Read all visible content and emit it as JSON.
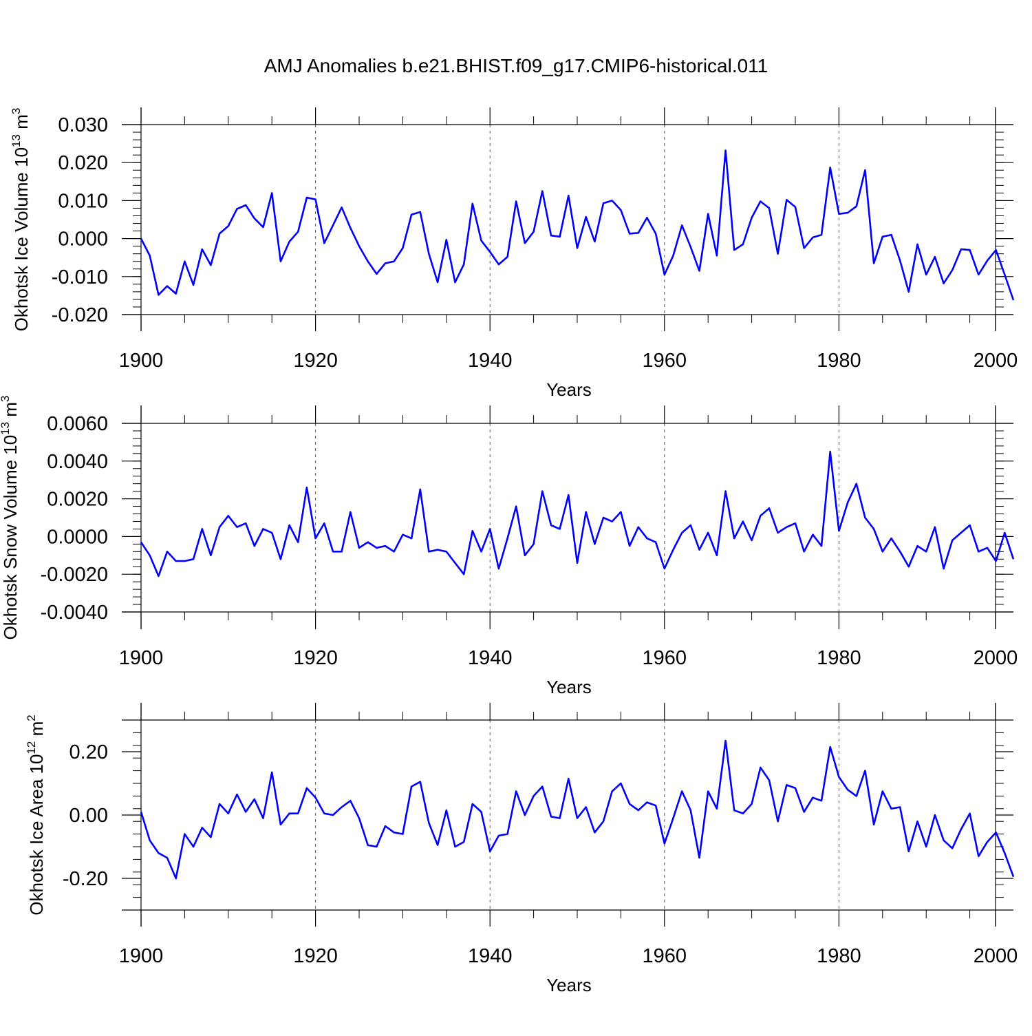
{
  "title": "AMJ Anomalies b.e21.BHIST.f09_g17.CMIP6-historical.011",
  "colors": {
    "line": "#0000ff",
    "axes": "#000000",
    "grid": "#555555"
  },
  "chart_data": [
    {
      "type": "line",
      "xlabel": "Years",
      "ylabel": "Okhotsk Ice Volume 10",
      "ylabel_exp": "13",
      "ylabel_unit": " m",
      "ylabel_unit_exp": "3",
      "xlim": [
        1900,
        2000
      ],
      "ylim": [
        -0.02,
        0.03
      ],
      "xticks": [
        1900,
        1920,
        1940,
        1960,
        1980,
        2000
      ],
      "xtick_labels": [
        "1900",
        "1920",
        "1940",
        "1960",
        "1980",
        "2000"
      ],
      "yticks": [
        -0.02,
        -0.01,
        0.0,
        0.01,
        0.02,
        0.03
      ],
      "ytick_labels": [
        "-0.020",
        "-0.010",
        "0.000",
        "0.010",
        "0.020",
        "0.030"
      ],
      "grid": "dashed vertical at 1920, 1940, 1960, 1980",
      "x_start": 1900,
      "values": [
        0.0,
        -0.0045,
        -0.0148,
        -0.0125,
        -0.0145,
        -0.006,
        -0.0122,
        -0.0028,
        -0.007,
        0.0013,
        0.0033,
        0.0078,
        0.0088,
        0.0053,
        0.003,
        0.012,
        -0.006,
        -0.0008,
        0.0018,
        0.0108,
        0.0103,
        -0.0012,
        0.0035,
        0.0082,
        0.0028,
        -0.002,
        -0.006,
        -0.0093,
        -0.0065,
        -0.006,
        -0.0025,
        0.0063,
        0.007,
        -0.004,
        -0.0115,
        -0.0003,
        -0.0115,
        -0.0068,
        0.0092,
        -0.0005,
        -0.0035,
        -0.0068,
        -0.0048,
        0.0098,
        -0.0012,
        0.0018,
        0.0125,
        0.0008,
        0.0005,
        0.0113,
        -0.0025,
        0.0057,
        -0.0008,
        0.0093,
        0.01,
        0.0075,
        0.0013,
        0.0015,
        0.0055,
        0.0013,
        -0.0095,
        -0.0045,
        0.0035,
        -0.0022,
        -0.0085,
        0.0065,
        -0.0045,
        0.0232,
        -0.003,
        -0.0015,
        0.0055,
        0.0098,
        0.008,
        -0.004,
        0.0102,
        0.0083,
        -0.0025,
        0.0003,
        0.001,
        0.0187,
        0.0065,
        0.0068,
        0.0085,
        0.018,
        -0.0065,
        0.0005,
        0.001,
        -0.0058,
        -0.014,
        -0.0015,
        -0.0095,
        -0.0048,
        -0.0118,
        -0.0083,
        -0.0028,
        -0.003,
        -0.0095,
        -0.0058,
        -0.003,
        -0.0095,
        -0.0162
      ]
    },
    {
      "type": "line",
      "xlabel": "Years",
      "ylabel": "Okhotsk Snow Volume 10",
      "ylabel_exp": "13",
      "ylabel_unit": " m",
      "ylabel_unit_exp": "3",
      "xlim": [
        1900,
        2000
      ],
      "ylim": [
        -0.004,
        0.006
      ],
      "xticks": [
        1900,
        1920,
        1940,
        1960,
        1980,
        2000
      ],
      "xtick_labels": [
        "1900",
        "1920",
        "1940",
        "1960",
        "1980",
        "2000"
      ],
      "yticks": [
        -0.004,
        -0.002,
        0.0,
        0.002,
        0.004,
        0.006
      ],
      "ytick_labels": [
        "-0.0040",
        "-0.0020",
        "0.0000",
        "0.0020",
        "0.0040",
        "0.0060"
      ],
      "grid": "dashed vertical at 1920, 1940, 1960, 1980",
      "x_start": 1900,
      "values": [
        -0.0003,
        -0.001,
        -0.0021,
        -0.0008,
        -0.0013,
        -0.0013,
        -0.0012,
        0.0004,
        -0.001,
        0.0005,
        0.0011,
        0.0005,
        0.0007,
        -0.0005,
        0.0004,
        0.0002,
        -0.0012,
        0.0006,
        -0.0003,
        0.0026,
        -0.0001,
        0.0007,
        -0.0008,
        -0.0008,
        0.0013,
        -0.0006,
        -0.0003,
        -0.0006,
        -0.0005,
        -0.0008,
        0.0001,
        -0.0001,
        0.0025,
        -0.0008,
        -0.0007,
        -0.0008,
        -0.0014,
        -0.002,
        0.0003,
        -0.0008,
        0.0004,
        -0.0017,
        -0.0001,
        0.0016,
        -0.001,
        -0.0004,
        0.0024,
        0.0006,
        0.0004,
        0.0022,
        -0.0014,
        0.0013,
        -0.0004,
        0.001,
        0.0008,
        0.0013,
        -0.0005,
        0.0005,
        -0.0001,
        -0.0003,
        -0.0017,
        -0.0007,
        0.0002,
        0.0006,
        -0.0007,
        0.0002,
        -0.001,
        0.0024,
        -0.0001,
        0.0008,
        -0.0002,
        0.0011,
        0.0015,
        0.0002,
        0.0005,
        0.0007,
        -0.0008,
        0.0001,
        -0.0005,
        0.0045,
        0.0003,
        0.0018,
        0.0028,
        0.001,
        0.0004,
        -0.0008,
        -0.0001,
        -0.0008,
        -0.0016,
        -0.0005,
        -0.0008,
        0.0005,
        -0.0017,
        -0.0002,
        0.0002,
        0.0006,
        -0.0008,
        -0.0006,
        -0.0013,
        0.0002,
        -0.0012
      ]
    },
    {
      "type": "line",
      "xlabel": "Years",
      "ylabel": "Okhotsk Ice Area 10",
      "ylabel_exp": "12",
      "ylabel_unit": " m",
      "ylabel_unit_exp": "2",
      "xlim": [
        1900,
        2000
      ],
      "ylim": [
        -0.3,
        0.3
      ],
      "xticks": [
        1900,
        1920,
        1940,
        1960,
        1980,
        2000
      ],
      "xtick_labels": [
        "1900",
        "1920",
        "1940",
        "1960",
        "1980",
        "2000"
      ],
      "yticks": [
        -0.2,
        0.0,
        0.2
      ],
      "ytick_labels": [
        "-0.20",
        "0.00",
        "0.20"
      ],
      "grid": "dashed vertical at 1920, 1940, 1960, 1980",
      "x_start": 1900,
      "values": [
        0.01,
        -0.08,
        -0.12,
        -0.135,
        -0.2,
        -0.06,
        -0.1,
        -0.04,
        -0.07,
        0.035,
        0.005,
        0.065,
        0.01,
        0.05,
        -0.01,
        0.135,
        -0.03,
        0.005,
        0.005,
        0.085,
        0.055,
        0.005,
        0.0,
        0.025,
        0.045,
        -0.01,
        -0.095,
        -0.1,
        -0.035,
        -0.055,
        -0.06,
        0.09,
        0.105,
        -0.025,
        -0.095,
        0.015,
        -0.1,
        -0.085,
        0.035,
        0.01,
        -0.115,
        -0.065,
        -0.06,
        0.075,
        0.0,
        0.06,
        0.09,
        -0.005,
        -0.01,
        0.115,
        -0.01,
        0.025,
        -0.055,
        -0.02,
        0.075,
        0.1,
        0.035,
        0.015,
        0.04,
        0.03,
        -0.09,
        -0.01,
        0.075,
        0.015,
        -0.135,
        0.075,
        0.02,
        0.235,
        0.015,
        0.005,
        0.035,
        0.15,
        0.11,
        -0.02,
        0.095,
        0.085,
        0.01,
        0.055,
        0.045,
        0.215,
        0.12,
        0.08,
        0.06,
        0.14,
        -0.03,
        0.075,
        0.02,
        0.025,
        -0.115,
        -0.02,
        -0.1,
        0.0,
        -0.08,
        -0.105,
        -0.045,
        0.005,
        -0.13,
        -0.085,
        -0.055,
        -0.12,
        -0.195
      ]
    }
  ]
}
